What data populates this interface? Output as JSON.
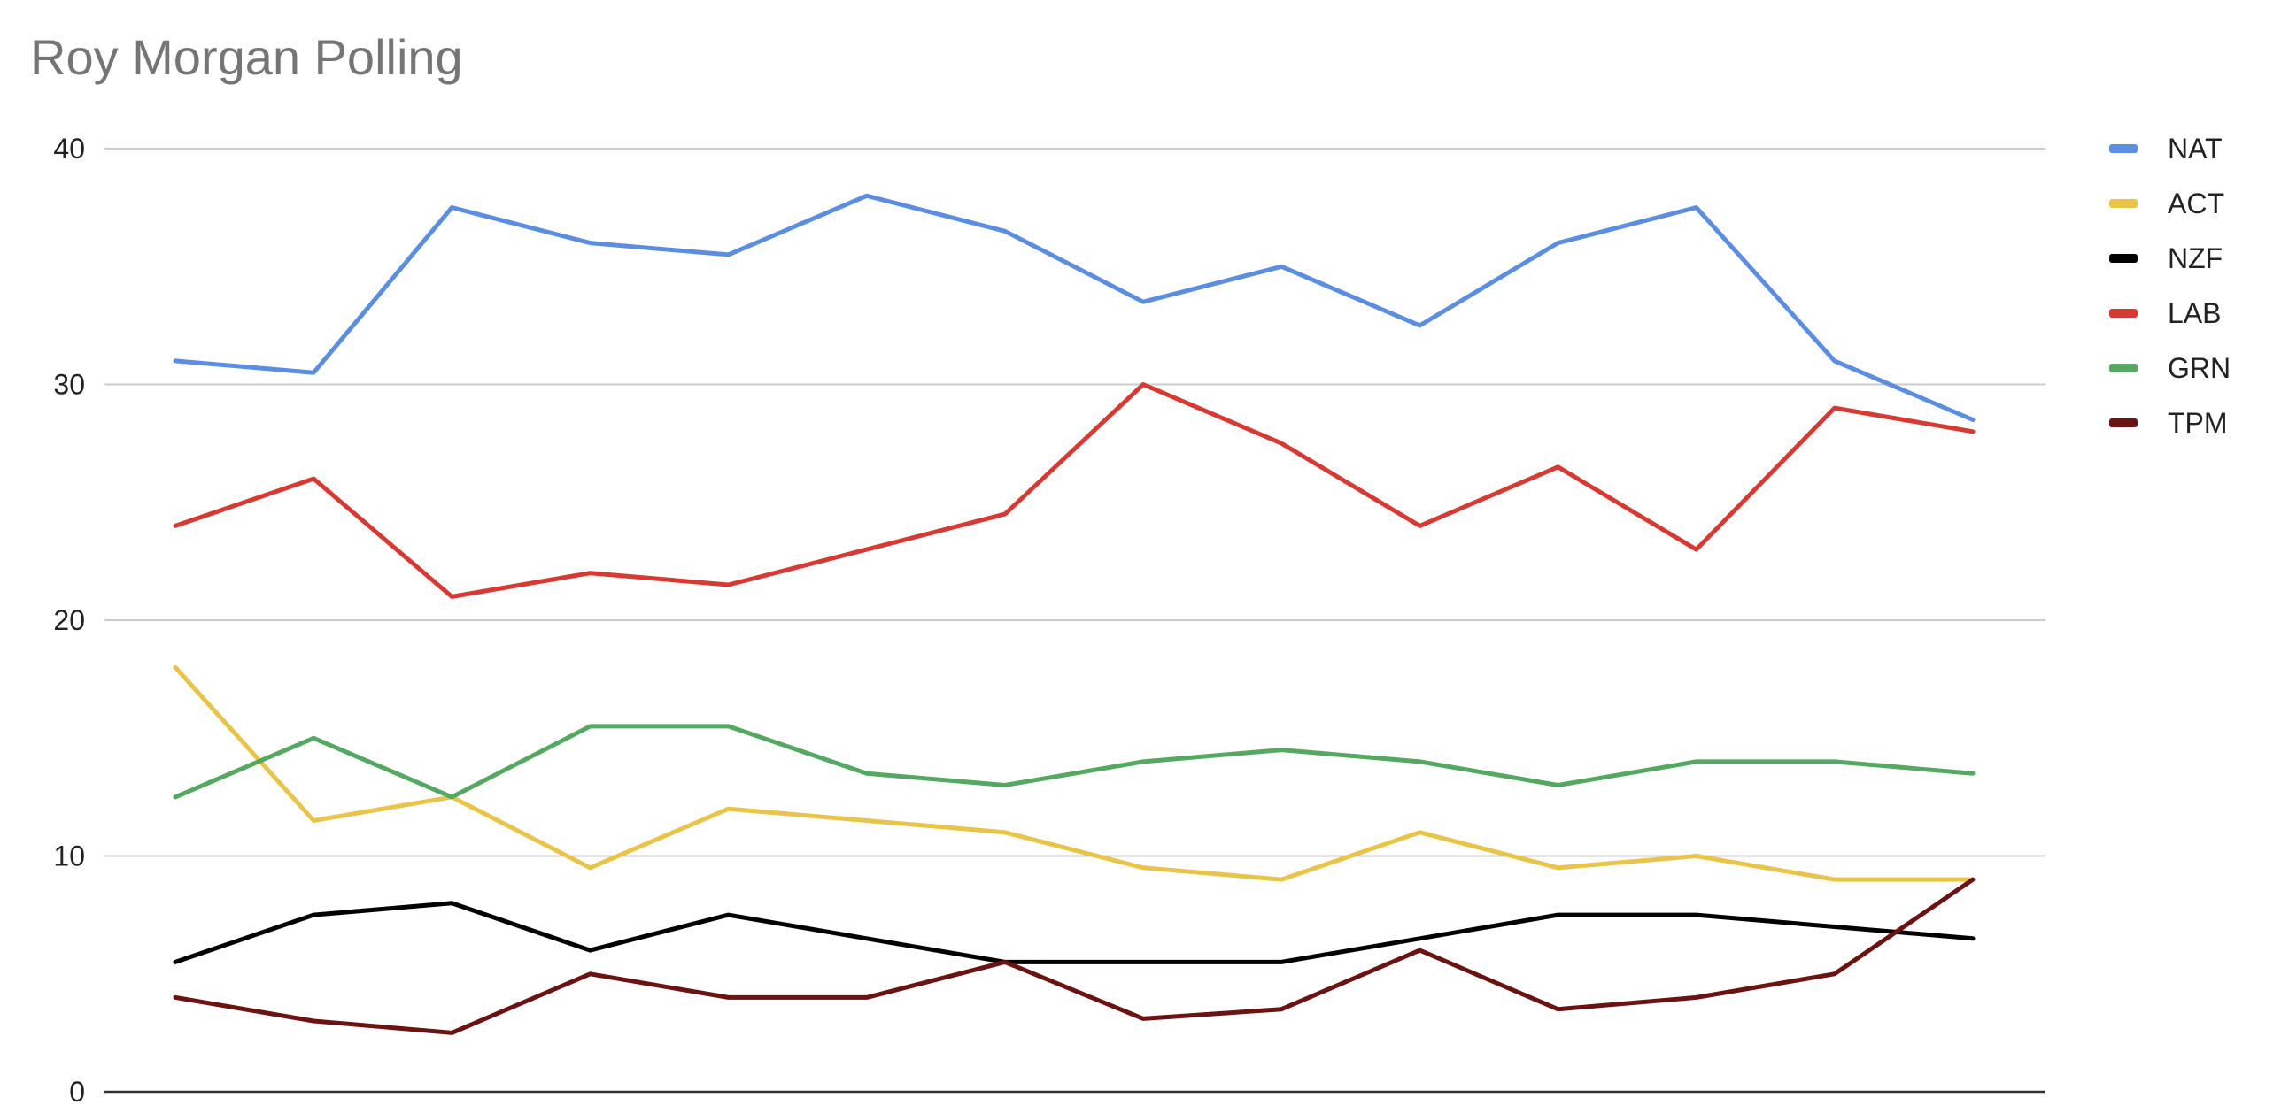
{
  "chart_data": {
    "type": "line",
    "title": "Roy Morgan Polling",
    "xlabel": "",
    "ylabel": "",
    "ylim": [
      0,
      40
    ],
    "yticks": [
      0,
      10,
      20,
      30,
      40
    ],
    "grid": true,
    "legend_position": "right",
    "x": [
      1,
      2,
      3,
      4,
      5,
      6,
      7,
      8,
      9,
      10,
      11,
      12,
      13,
      14
    ],
    "series": [
      {
        "name": "NAT",
        "color": "#5b8ee0",
        "values": [
          31,
          30.5,
          37.5,
          36,
          35.5,
          38,
          36.5,
          33.5,
          35,
          32.5,
          36,
          37.5,
          31,
          28.5
        ]
      },
      {
        "name": "ACT",
        "color": "#e8c54a",
        "values": [
          18,
          11.5,
          12.5,
          9.5,
          12,
          11.5,
          11,
          9.5,
          9,
          11,
          9.5,
          10,
          9,
          9
        ]
      },
      {
        "name": "NZF",
        "color": "#000000",
        "values": [
          5.5,
          7.5,
          8,
          6,
          7.5,
          6.5,
          5.5,
          5.5,
          5.5,
          6.5,
          7.5,
          7.5,
          7,
          6.5
        ]
      },
      {
        "name": "LAB",
        "color": "#d63a33",
        "values": [
          24,
          26,
          21,
          22,
          21.5,
          23,
          24.5,
          30,
          27.5,
          24,
          26.5,
          23,
          29,
          28
        ]
      },
      {
        "name": "GRN",
        "color": "#54a862",
        "values": [
          12.5,
          15,
          12.5,
          15.5,
          15.5,
          13.5,
          13,
          14,
          14.5,
          14,
          13,
          14,
          14,
          13.5
        ]
      },
      {
        "name": "TPM",
        "color": "#6b1212",
        "values": [
          4,
          3,
          2.5,
          5,
          4,
          4,
          5.5,
          3.1,
          3.5,
          6,
          3.5,
          4,
          5,
          9
        ]
      }
    ]
  }
}
